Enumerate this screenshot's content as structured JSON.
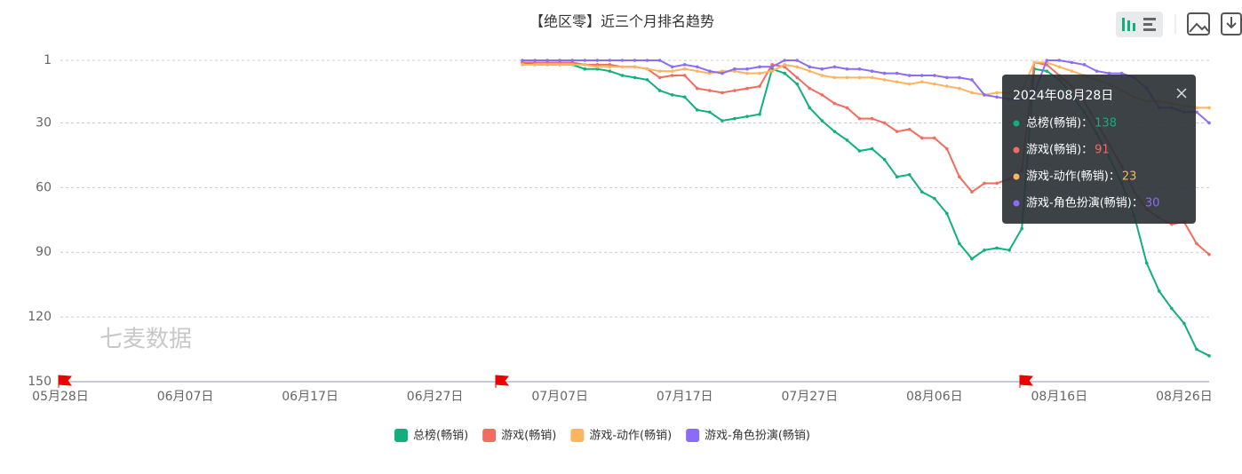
{
  "chart_data": {
    "type": "line",
    "title": "【绝区零】近三个月排名趋势",
    "watermark": "七麦数据",
    "categories": [
      "05月28日",
      null,
      null,
      null,
      null,
      null,
      null,
      null,
      null,
      null,
      "06月07日",
      null,
      null,
      null,
      null,
      null,
      null,
      null,
      null,
      null,
      "06月17日",
      null,
      null,
      null,
      null,
      null,
      null,
      null,
      null,
      null,
      "06月27日",
      null,
      null,
      null,
      null,
      null,
      null,
      null,
      null,
      null,
      "07月07日",
      null,
      null,
      null,
      null,
      null,
      null,
      null,
      null,
      null,
      "07月17日",
      null,
      null,
      null,
      null,
      null,
      null,
      null,
      null,
      null,
      "07月27日",
      null,
      null,
      null,
      null,
      null,
      null,
      null,
      null,
      null,
      "08月06日",
      null,
      null,
      null,
      null,
      null,
      null,
      null,
      null,
      null,
      "08月16日",
      null,
      null,
      null,
      null,
      null,
      null,
      null,
      null,
      null,
      "08月26日",
      null,
      null
    ],
    "ylim": [
      1,
      150
    ],
    "inverse": true,
    "yticks": [
      1,
      30,
      60,
      90,
      120,
      150
    ],
    "grid": true,
    "series": [
      {
        "name": "总榜(畅销)",
        "color": "#10b07d",
        "values": [
          null,
          null,
          null,
          null,
          null,
          null,
          null,
          null,
          null,
          null,
          null,
          null,
          null,
          null,
          null,
          null,
          null,
          null,
          null,
          null,
          null,
          null,
          null,
          null,
          null,
          null,
          null,
          null,
          null,
          null,
          null,
          null,
          null,
          null,
          null,
          null,
          null,
          2,
          3,
          3,
          3,
          3,
          5,
          5,
          6,
          8,
          9,
          10,
          15,
          17,
          18,
          24,
          25,
          29,
          28,
          27,
          26,
          5,
          7,
          12,
          23,
          29,
          34,
          38,
          43,
          42,
          47,
          55,
          54,
          62,
          65,
          72,
          86,
          93,
          89,
          88,
          89,
          79,
          5,
          6,
          10,
          17,
          25,
          35,
          46,
          58,
          73,
          95,
          108,
          116,
          123,
          135,
          138
        ]
      },
      {
        "name": "游戏(畅销)",
        "color": "#f36c60",
        "values": [
          null,
          null,
          null,
          null,
          null,
          null,
          null,
          null,
          null,
          null,
          null,
          null,
          null,
          null,
          null,
          null,
          null,
          null,
          null,
          null,
          null,
          null,
          null,
          null,
          null,
          null,
          null,
          null,
          null,
          null,
          null,
          null,
          null,
          null,
          null,
          null,
          null,
          2,
          2,
          2,
          2,
          2,
          3,
          3,
          3,
          4,
          4,
          5,
          9,
          8,
          8,
          14,
          15,
          16,
          15,
          14,
          13,
          3,
          4,
          9,
          14,
          17,
          21,
          23,
          28,
          28,
          30,
          34,
          33,
          37,
          37,
          42,
          55,
          62,
          58,
          58,
          56,
          52,
          2,
          3,
          8,
          13,
          20,
          30,
          40,
          50,
          62,
          70,
          74,
          77,
          76,
          86,
          91
        ]
      },
      {
        "name": "游戏-动作(畅销)",
        "color": "#fbb560",
        "values": [
          null,
          null,
          null,
          null,
          null,
          null,
          null,
          null,
          null,
          null,
          null,
          null,
          null,
          null,
          null,
          null,
          null,
          null,
          null,
          null,
          null,
          null,
          null,
          null,
          null,
          null,
          null,
          null,
          null,
          null,
          null,
          null,
          null,
          null,
          null,
          null,
          null,
          3,
          3,
          3,
          3,
          3,
          3,
          4,
          4,
          4,
          4,
          5,
          6,
          6,
          5,
          6,
          7,
          6,
          6,
          7,
          7,
          6,
          3,
          4,
          6,
          8,
          9,
          9,
          9,
          9,
          10,
          11,
          12,
          11,
          12,
          13,
          14,
          16,
          17,
          16,
          16,
          15,
          2,
          2,
          4,
          6,
          8,
          10,
          12,
          15,
          18,
          20,
          20,
          21,
          22,
          23,
          23
        ]
      },
      {
        "name": "游戏-角色扮演(畅销)",
        "color": "#8c6cf7",
        "values": [
          null,
          null,
          null,
          null,
          null,
          null,
          null,
          null,
          null,
          null,
          null,
          null,
          null,
          null,
          null,
          null,
          null,
          null,
          null,
          null,
          null,
          null,
          null,
          null,
          null,
          null,
          null,
          null,
          null,
          null,
          null,
          null,
          null,
          null,
          null,
          null,
          null,
          1,
          1,
          1,
          1,
          1,
          1,
          1,
          1,
          1,
          1,
          1,
          1,
          4,
          3,
          4,
          6,
          7,
          5,
          5,
          4,
          4,
          1,
          1,
          4,
          5,
          4,
          5,
          5,
          6,
          7,
          7,
          8,
          8,
          8,
          9,
          9,
          10,
          17,
          18,
          19,
          19,
          16,
          1,
          1,
          2,
          3,
          6,
          7,
          7,
          9,
          14,
          23,
          23,
          25,
          25,
          30
        ]
      }
    ],
    "tooltip": {
      "title": "2024年08月28日",
      "items": [
        {
          "label": "总榜(畅销)：",
          "value": 138
        },
        {
          "label": "游戏(畅销)：",
          "value": 91
        },
        {
          "label": "游戏-动作(畅销)：",
          "value": 23
        },
        {
          "label": "游戏-角色扮演(畅销)：",
          "value": 30
        }
      ]
    }
  }
}
